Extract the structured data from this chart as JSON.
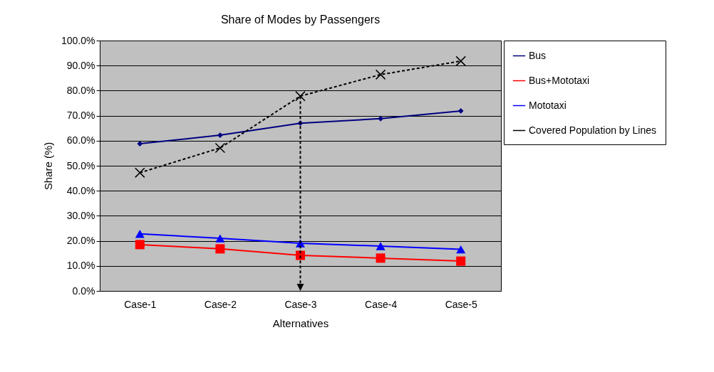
{
  "chart_data": {
    "type": "line",
    "title": "Share of Modes by Passengers",
    "xlabel": "Alternatives",
    "ylabel": "Share (%)",
    "categories": [
      "Case-1",
      "Case-2",
      "Case-3",
      "Case-4",
      "Case-5"
    ],
    "series": [
      {
        "name": "Bus",
        "color": "#000080",
        "marker": "diamond",
        "values": [
          58.8,
          62.2,
          67.0,
          68.8,
          71.9
        ]
      },
      {
        "name": "Bus+Mototaxi",
        "color": "#ff0000",
        "marker": "square",
        "values": [
          18.5,
          16.8,
          14.2,
          13.1,
          11.9
        ]
      },
      {
        "name": "Mototaxi",
        "color": "#0000ff",
        "marker": "triangle",
        "values": [
          22.8,
          21.0,
          19.0,
          17.9,
          16.6
        ]
      },
      {
        "name": "Covered Population by Lines",
        "color": "#000000",
        "marker": "cross",
        "line_style": "dashed",
        "values": [
          47.2,
          57.1,
          77.8,
          86.4,
          91.8
        ]
      }
    ],
    "ylim": [
      0,
      100
    ],
    "yticks": [
      {
        "value": 0,
        "label": "0.0%"
      },
      {
        "value": 10,
        "label": "10.0%"
      },
      {
        "value": 20,
        "label": "20.0%"
      },
      {
        "value": 30,
        "label": "30.0%"
      },
      {
        "value": 40,
        "label": "40.0%"
      },
      {
        "value": 50,
        "label": "50.0%"
      },
      {
        "value": 60,
        "label": "60.0%"
      },
      {
        "value": 70,
        "label": "70.0%"
      },
      {
        "value": 80,
        "label": "80.0%"
      },
      {
        "value": 90,
        "label": "90.0%"
      },
      {
        "value": 100,
        "label": "100.0%"
      }
    ],
    "grid": "y",
    "legend": "right"
  }
}
